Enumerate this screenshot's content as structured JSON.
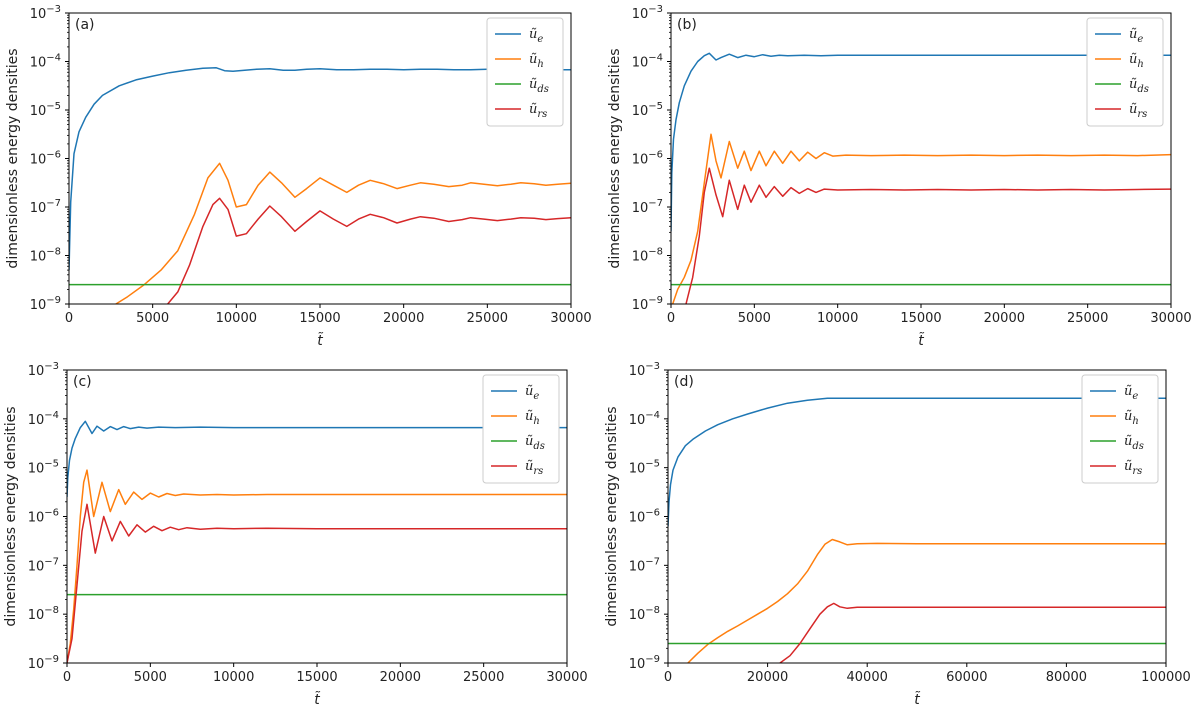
{
  "chart_data": [
    {
      "type": "line",
      "panel_label": "(a)",
      "xlabel": "t̃",
      "ylabel": "dimensionless energy densities",
      "yscale": "log",
      "xlim": [
        0,
        30000
      ],
      "ylim_exp": [
        -9,
        -3
      ],
      "xticks": [
        "0",
        "5000",
        "10000",
        "15000",
        "20000",
        "25000",
        "30000"
      ],
      "yticks_exp": [
        "−9",
        "−8",
        "−7",
        "−6",
        "−5",
        "−4",
        "−3"
      ],
      "legend_location": "upper right",
      "series": [
        {
          "name": "ũe",
          "base": "ũ",
          "sub": "e",
          "color": "#1f77b4",
          "x": [
            0,
            100,
            300,
            600,
            1000,
            1500,
            2000,
            3000,
            4000,
            5000,
            6000,
            7000,
            8000,
            8800,
            9300,
            9800,
            10500,
            11200,
            12000,
            12800,
            13500,
            14200,
            15000,
            16000,
            17000,
            18000,
            19000,
            20000,
            21000,
            22000,
            23000,
            24000,
            25000,
            26000,
            27000,
            28000,
            29000,
            30000
          ],
          "logy": [
            -8.3,
            -6.9,
            -5.9,
            -5.45,
            -5.15,
            -4.88,
            -4.7,
            -4.5,
            -4.38,
            -4.3,
            -4.23,
            -4.18,
            -4.14,
            -4.13,
            -4.19,
            -4.2,
            -4.18,
            -4.16,
            -4.15,
            -4.18,
            -4.18,
            -4.16,
            -4.15,
            -4.17,
            -4.17,
            -4.16,
            -4.16,
            -4.17,
            -4.16,
            -4.16,
            -4.17,
            -4.17,
            -4.16,
            -4.16,
            -4.17,
            -4.17,
            -4.17,
            -4.17
          ]
        },
        {
          "name": "ũh",
          "base": "ũ",
          "sub": "h",
          "color": "#ff7f0e",
          "x": [
            2800,
            3500,
            4500,
            5500,
            6500,
            7500,
            8300,
            9000,
            9500,
            10000,
            10600,
            11300,
            12000,
            12700,
            13500,
            14200,
            15000,
            15800,
            16600,
            17300,
            18000,
            18800,
            19600,
            20400,
            21000,
            21800,
            22700,
            23500,
            24000,
            24800,
            25600,
            26400,
            27000,
            27800,
            28500,
            29200,
            30000
          ],
          "logy": [
            -9.0,
            -8.85,
            -8.6,
            -8.3,
            -7.9,
            -7.15,
            -6.4,
            -6.1,
            -6.45,
            -7.0,
            -6.95,
            -6.55,
            -6.28,
            -6.5,
            -6.8,
            -6.62,
            -6.4,
            -6.55,
            -6.7,
            -6.55,
            -6.45,
            -6.52,
            -6.62,
            -6.55,
            -6.5,
            -6.53,
            -6.58,
            -6.55,
            -6.5,
            -6.53,
            -6.56,
            -6.53,
            -6.5,
            -6.52,
            -6.55,
            -6.53,
            -6.51
          ]
        },
        {
          "name": "ũds",
          "base": "ũ",
          "sub": "ds",
          "color": "#2ca02c",
          "x": [
            0,
            30000
          ],
          "logy": [
            -8.6,
            -8.6
          ]
        },
        {
          "name": "ũrs",
          "base": "ũ",
          "sub": "rs",
          "color": "#d62728",
          "x": [
            5900,
            6500,
            7200,
            8000,
            8600,
            9000,
            9500,
            10000,
            10600,
            11300,
            12000,
            12700,
            13500,
            14200,
            15000,
            15800,
            16600,
            17300,
            18000,
            18800,
            19600,
            20400,
            21000,
            21800,
            22700,
            23500,
            24000,
            24800,
            25600,
            26400,
            27000,
            27800,
            28500,
            29200,
            30000
          ],
          "logy": [
            -9.0,
            -8.75,
            -8.2,
            -7.4,
            -6.95,
            -6.82,
            -7.05,
            -7.6,
            -7.55,
            -7.25,
            -6.98,
            -7.2,
            -7.5,
            -7.3,
            -7.08,
            -7.25,
            -7.4,
            -7.25,
            -7.15,
            -7.22,
            -7.33,
            -7.25,
            -7.2,
            -7.23,
            -7.3,
            -7.26,
            -7.22,
            -7.25,
            -7.28,
            -7.25,
            -7.22,
            -7.23,
            -7.26,
            -7.24,
            -7.22
          ]
        }
      ]
    },
    {
      "type": "line",
      "panel_label": "(b)",
      "xlabel": "t̃",
      "ylabel": "dimensionless energy densities",
      "yscale": "log",
      "xlim": [
        0,
        30000
      ],
      "ylim_exp": [
        -9,
        -3
      ],
      "xticks": [
        "0",
        "5000",
        "10000",
        "15000",
        "20000",
        "25000",
        "30000"
      ],
      "yticks_exp": [
        "−9",
        "−8",
        "−7",
        "−6",
        "−5",
        "−4",
        "−3"
      ],
      "legend_location": "upper right",
      "series": [
        {
          "name": "ũe",
          "base": "ũ",
          "sub": "e",
          "color": "#1f77b4",
          "x": [
            0,
            50,
            150,
            300,
            500,
            800,
            1200,
            1600,
            2000,
            2300,
            2700,
            3000,
            3500,
            4000,
            4500,
            5000,
            5500,
            6000,
            6500,
            7000,
            8000,
            9000,
            10000,
            12000,
            15000,
            20000,
            25000,
            30000
          ],
          "logy": [
            -7.5,
            -6.3,
            -5.6,
            -5.2,
            -4.85,
            -4.5,
            -4.2,
            -4.0,
            -3.88,
            -3.83,
            -3.97,
            -3.92,
            -3.85,
            -3.92,
            -3.87,
            -3.9,
            -3.86,
            -3.89,
            -3.87,
            -3.88,
            -3.87,
            -3.88,
            -3.87,
            -3.87,
            -3.87,
            -3.87,
            -3.87,
            -3.87
          ]
        },
        {
          "name": "ũh",
          "base": "ũ",
          "sub": "h",
          "color": "#ff7f0e",
          "x": [
            100,
            400,
            800,
            1200,
            1600,
            2000,
            2400,
            2700,
            3000,
            3500,
            4000,
            4400,
            4800,
            5300,
            5700,
            6200,
            6700,
            7200,
            7700,
            8200,
            8700,
            9200,
            9700,
            10500,
            12000,
            14000,
            16000,
            18000,
            20000,
            22000,
            24000,
            26000,
            28000,
            30000
          ],
          "logy": [
            -9.0,
            -8.7,
            -8.45,
            -8.1,
            -7.5,
            -6.5,
            -5.5,
            -6.05,
            -6.4,
            -5.65,
            -6.2,
            -5.85,
            -6.25,
            -5.85,
            -6.15,
            -5.85,
            -6.1,
            -5.85,
            -6.05,
            -5.87,
            -6.0,
            -5.88,
            -5.95,
            -5.93,
            -5.94,
            -5.93,
            -5.94,
            -5.93,
            -5.94,
            -5.93,
            -5.94,
            -5.93,
            -5.94,
            -5.92
          ]
        },
        {
          "name": "ũds",
          "base": "ũ",
          "sub": "ds",
          "color": "#2ca02c",
          "x": [
            0,
            30000
          ],
          "logy": [
            -8.6,
            -8.6
          ]
        },
        {
          "name": "ũrs",
          "base": "ũ",
          "sub": "rs",
          "color": "#d62728",
          "x": [
            900,
            1300,
            1700,
            2000,
            2300,
            2700,
            3100,
            3500,
            4000,
            4400,
            4800,
            5300,
            5700,
            6200,
            6700,
            7200,
            7700,
            8200,
            8700,
            9200,
            10000,
            12000,
            14000,
            16000,
            18000,
            20000,
            22000,
            24000,
            26000,
            28000,
            30000
          ],
          "logy": [
            -9.0,
            -8.45,
            -7.6,
            -6.7,
            -6.2,
            -6.75,
            -7.2,
            -6.45,
            -7.05,
            -6.55,
            -6.9,
            -6.55,
            -6.8,
            -6.58,
            -6.78,
            -6.6,
            -6.72,
            -6.62,
            -6.7,
            -6.63,
            -6.65,
            -6.64,
            -6.65,
            -6.64,
            -6.65,
            -6.64,
            -6.65,
            -6.64,
            -6.65,
            -6.64,
            -6.63
          ]
        }
      ]
    },
    {
      "type": "line",
      "panel_label": "(c)",
      "xlabel": "t̃",
      "ylabel": "dimensionless energy densities",
      "yscale": "log",
      "xlim": [
        0,
        30000
      ],
      "ylim_exp": [
        -9,
        -3
      ],
      "xticks": [
        "0",
        "5000",
        "10000",
        "15000",
        "20000",
        "25000",
        "30000"
      ],
      "yticks_exp": [
        "−9",
        "−8",
        "−7",
        "−6",
        "−5",
        "−4",
        "−3"
      ],
      "legend_location": "upper right",
      "series": [
        {
          "name": "ũe",
          "base": "ũ",
          "sub": "e",
          "color": "#1f77b4",
          "x": [
            0,
            50,
            150,
            300,
            500,
            800,
            1100,
            1500,
            1800,
            2200,
            2600,
            3000,
            3400,
            3800,
            4300,
            4800,
            5500,
            6500,
            8000,
            10000,
            15000,
            20000,
            25000,
            30000
          ],
          "logy": [
            -5.6,
            -5.2,
            -4.85,
            -4.6,
            -4.4,
            -4.18,
            -4.05,
            -4.3,
            -4.15,
            -4.25,
            -4.16,
            -4.22,
            -4.16,
            -4.2,
            -4.17,
            -4.19,
            -4.17,
            -4.18,
            -4.17,
            -4.18,
            -4.18,
            -4.18,
            -4.18,
            -4.18
          ]
        },
        {
          "name": "ũh",
          "base": "ũ",
          "sub": "h",
          "color": "#ff7f0e",
          "x": [
            0,
            200,
            400,
            600,
            800,
            1000,
            1200,
            1600,
            2100,
            2600,
            3100,
            3500,
            4000,
            4500,
            5000,
            5500,
            6000,
            6500,
            7000,
            8000,
            9000,
            10000,
            12000,
            15000,
            20000,
            25000,
            30000
          ],
          "logy": [
            -9.0,
            -8.6,
            -7.9,
            -7.0,
            -6.0,
            -5.3,
            -5.05,
            -6.0,
            -5.3,
            -5.9,
            -5.45,
            -5.75,
            -5.5,
            -5.65,
            -5.52,
            -5.6,
            -5.53,
            -5.57,
            -5.54,
            -5.56,
            -5.55,
            -5.56,
            -5.55,
            -5.55,
            -5.55,
            -5.55,
            -5.55
          ]
        },
        {
          "name": "ũds",
          "base": "ũ",
          "sub": "ds",
          "color": "#2ca02c",
          "x": [
            0,
            30000
          ],
          "logy": [
            -7.6,
            -7.6
          ]
        },
        {
          "name": "ũrs",
          "base": "ũ",
          "sub": "rs",
          "color": "#d62728",
          "x": [
            0,
            300,
            600,
            900,
            1200,
            1700,
            2200,
            2700,
            3200,
            3700,
            4200,
            4700,
            5200,
            5700,
            6200,
            6700,
            7200,
            8000,
            9000,
            10000,
            12000,
            15000,
            20000,
            25000,
            30000
          ],
          "logy": [
            -9.0,
            -8.5,
            -7.4,
            -6.3,
            -5.75,
            -6.75,
            -6.0,
            -6.5,
            -6.1,
            -6.4,
            -6.17,
            -6.32,
            -6.2,
            -6.29,
            -6.22,
            -6.27,
            -6.23,
            -6.26,
            -6.24,
            -6.25,
            -6.24,
            -6.25,
            -6.25,
            -6.25,
            -6.25
          ]
        }
      ]
    },
    {
      "type": "line",
      "panel_label": "(d)",
      "xlabel": "t̃",
      "ylabel": "dimensionless energy densities",
      "yscale": "log",
      "xlim": [
        0,
        100000
      ],
      "ylim_exp": [
        -9,
        -3
      ],
      "xticks": [
        "0",
        "20000",
        "40000",
        "60000",
        "80000",
        "100000"
      ],
      "yticks_exp": [
        "−9",
        "−8",
        "−7",
        "−6",
        "−5",
        "−4",
        "−3"
      ],
      "legend_location": "upper right",
      "series": [
        {
          "name": "ũe",
          "base": "ũ",
          "sub": "e",
          "color": "#1f77b4",
          "x": [
            0,
            200,
            500,
            1000,
            2000,
            3500,
            5000,
            7500,
            10000,
            13000,
            16000,
            20000,
            24000,
            28000,
            32000,
            35000,
            40000,
            50000,
            60000,
            70000,
            80000,
            90000,
            100000
          ],
          "logy": [
            -6.2,
            -5.7,
            -5.35,
            -5.05,
            -4.78,
            -4.55,
            -4.42,
            -4.25,
            -4.12,
            -4.0,
            -3.9,
            -3.78,
            -3.68,
            -3.62,
            -3.58,
            -3.58,
            -3.58,
            -3.58,
            -3.58,
            -3.58,
            -3.58,
            -3.58,
            -3.58
          ]
        },
        {
          "name": "ũh",
          "base": "ũ",
          "sub": "h",
          "color": "#ff7f0e",
          "x": [
            4000,
            6000,
            8000,
            10000,
            12000,
            14000,
            16000,
            18000,
            20000,
            22000,
            24000,
            26000,
            28000,
            30000,
            31500,
            33000,
            34500,
            36000,
            38000,
            42000,
            50000,
            60000,
            70000,
            80000,
            90000,
            100000
          ],
          "logy": [
            -9.0,
            -8.8,
            -8.62,
            -8.48,
            -8.35,
            -8.24,
            -8.12,
            -8.0,
            -7.88,
            -7.74,
            -7.58,
            -7.38,
            -7.12,
            -6.78,
            -6.57,
            -6.47,
            -6.52,
            -6.58,
            -6.56,
            -6.55,
            -6.56,
            -6.56,
            -6.56,
            -6.56,
            -6.56,
            -6.56
          ]
        },
        {
          "name": "ũds",
          "base": "ũ",
          "sub": "ds",
          "color": "#2ca02c",
          "x": [
            0,
            100000
          ],
          "logy": [
            -8.6,
            -8.6
          ]
        },
        {
          "name": "ũrs",
          "base": "ũ",
          "sub": "rs",
          "color": "#d62728",
          "x": [
            22500,
            24500,
            26500,
            28500,
            30500,
            32000,
            33300,
            34500,
            36000,
            38000,
            42000,
            50000,
            60000,
            70000,
            80000,
            90000,
            100000
          ],
          "logy": [
            -9.0,
            -8.85,
            -8.6,
            -8.3,
            -8.0,
            -7.85,
            -7.78,
            -7.85,
            -7.88,
            -7.86,
            -7.86,
            -7.86,
            -7.86,
            -7.86,
            -7.86,
            -7.86,
            -7.86
          ]
        }
      ]
    }
  ]
}
